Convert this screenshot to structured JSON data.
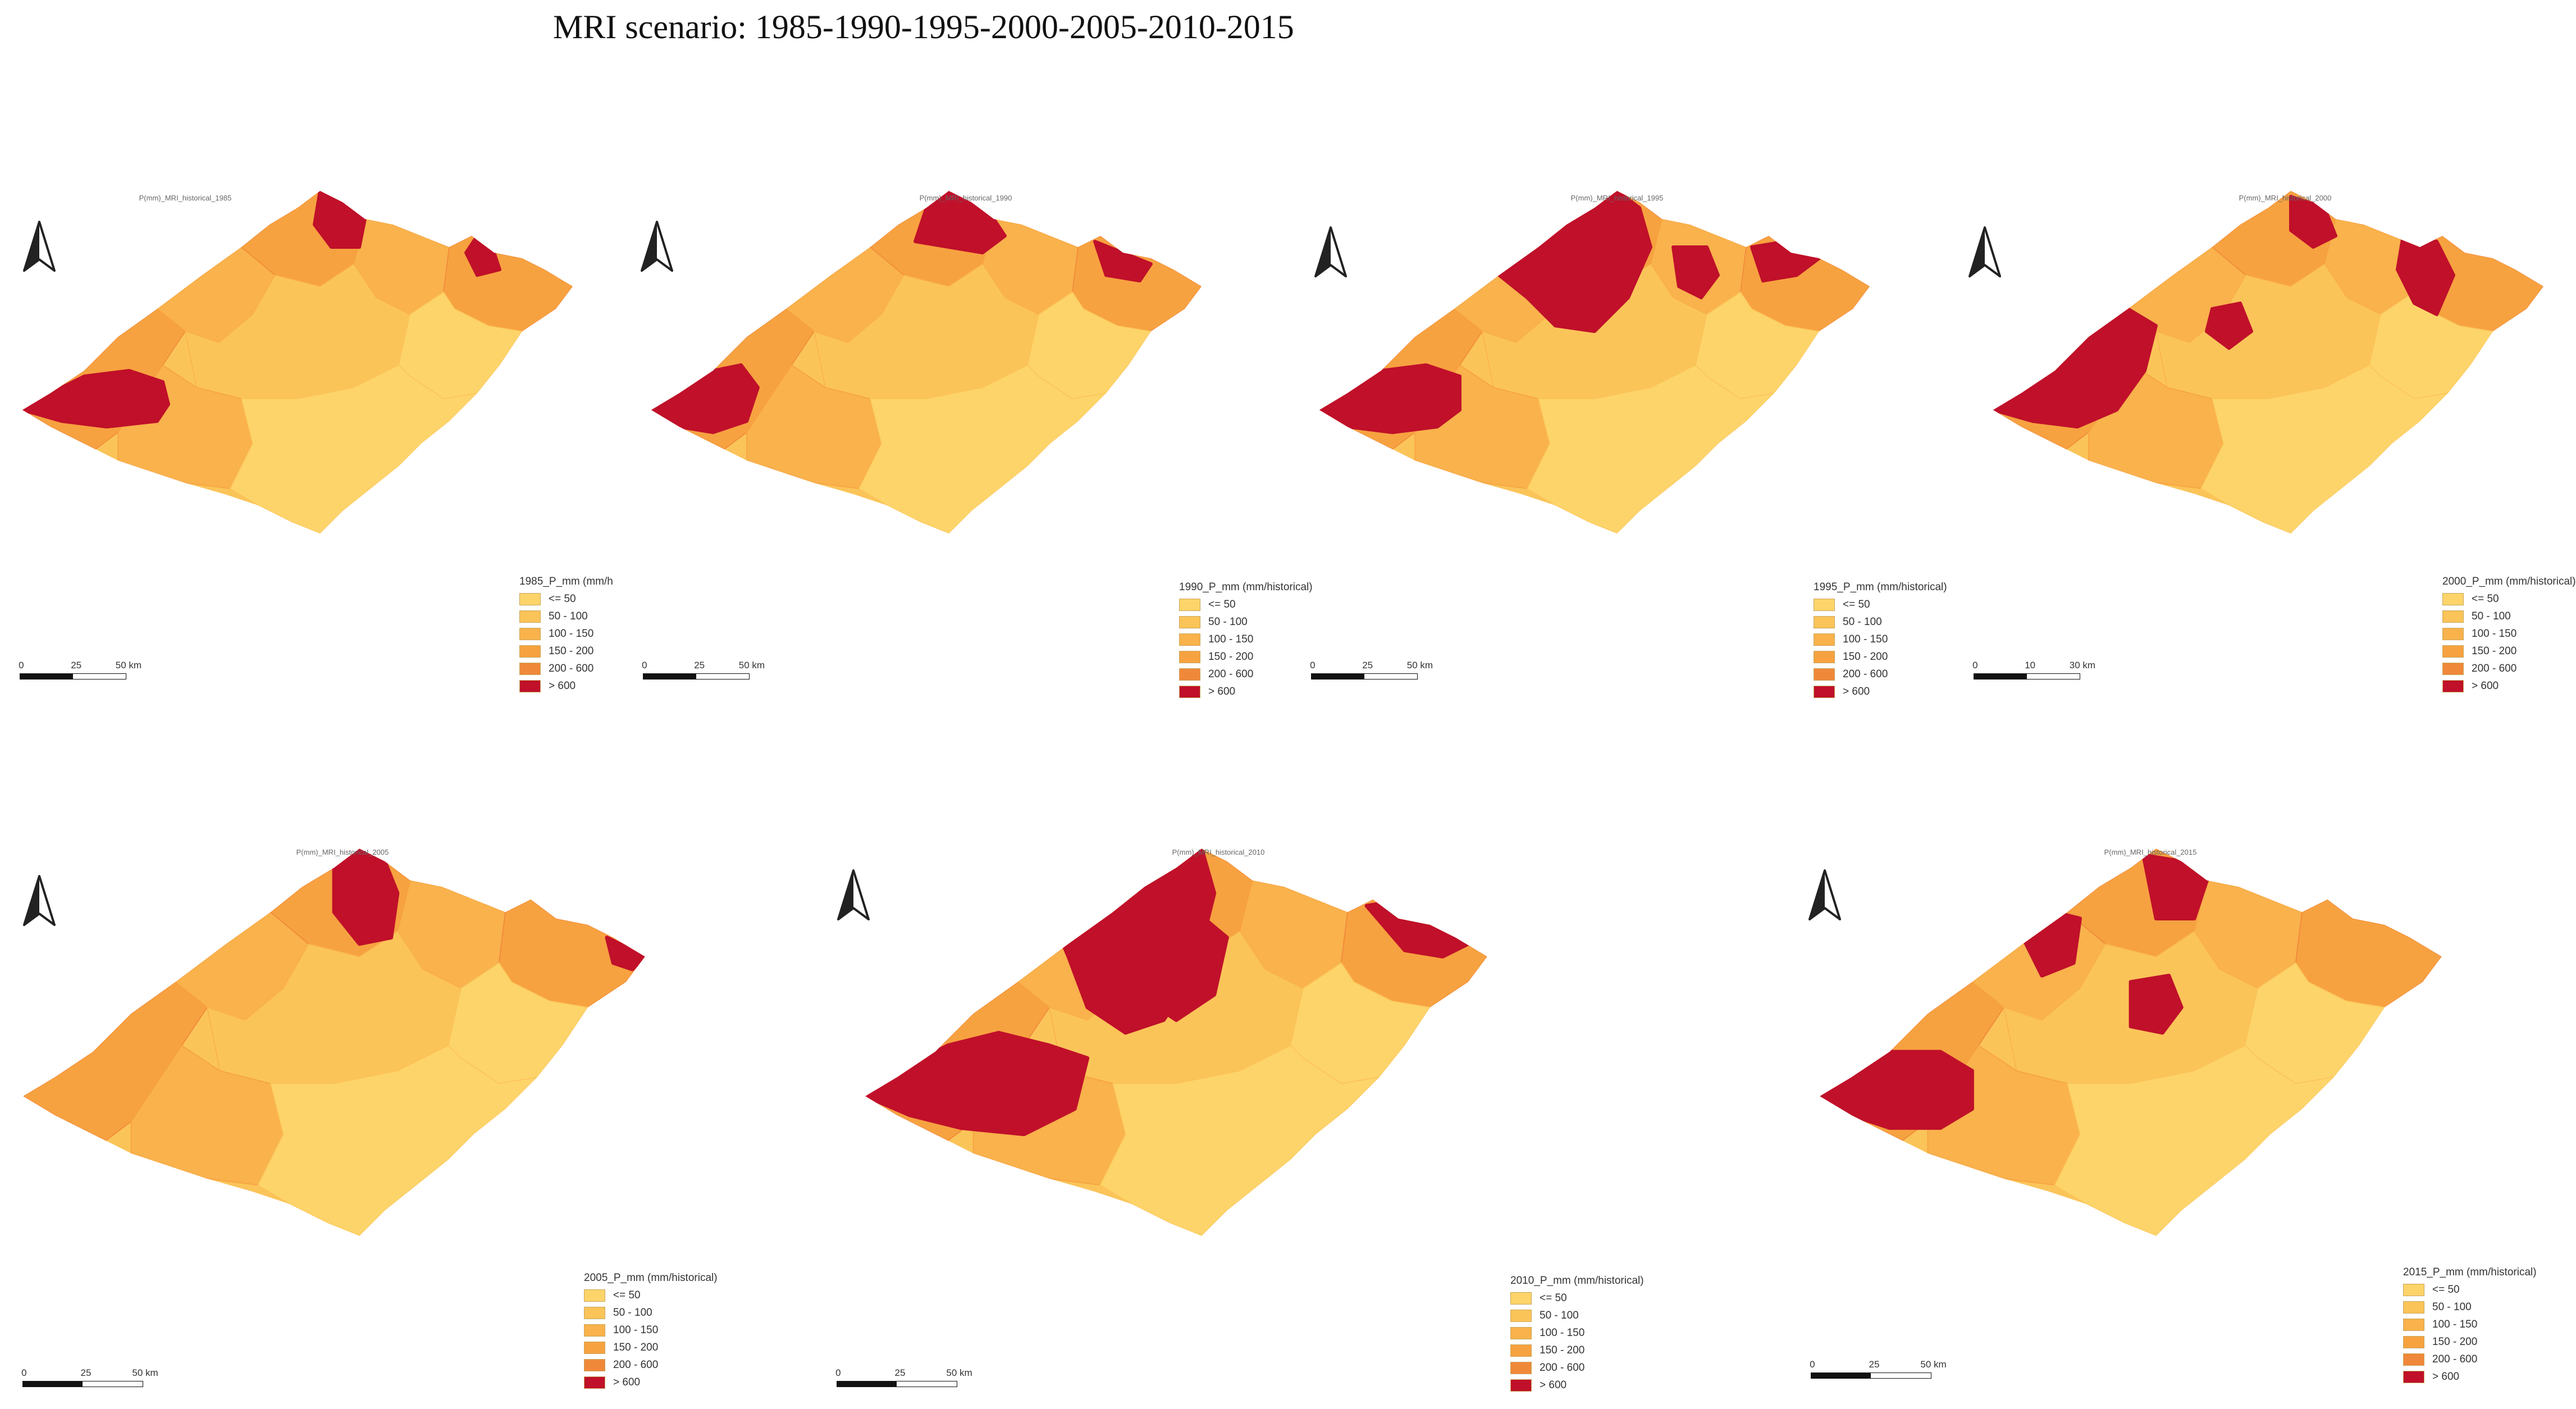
{
  "figure_title": "MRI scenario: 1985-1990-1995-2000-2005-2010-2015",
  "colors": {
    "class_le_50": "#fdd46a",
    "class_50_100": "#fbc459",
    "class_100_150": "#f9b24c",
    "class_150_200": "#f7a240",
    "class_200_600": "#f0883a",
    "class_gt_600": "#c0102a"
  },
  "panels": [
    {
      "title": "P(mm)_MRI_historical_1985",
      "legend": {
        "header": "1985_P_mm (mm/h",
        "classes": [
          {
            "label": "<= 50",
            "color": "#fdd46a"
          },
          {
            "label": "50 - 100",
            "color": "#fbc459"
          },
          {
            "label": "100 - 150",
            "color": "#f9b24c"
          },
          {
            "label": "150 - 200",
            "color": "#f7a240"
          },
          {
            "label": "200 - 600",
            "color": "#f0883a"
          },
          {
            "label": "> 600",
            "color": "#c0102a"
          }
        ]
      },
      "scale_bar": {
        "ticks": [
          "0",
          "25",
          "50 km"
        ]
      }
    },
    {
      "title": "P(mm)_MRI_historical_1990",
      "legend": {
        "header": "1990_P_mm (mm/historical)",
        "classes": [
          {
            "label": "<= 50",
            "color": "#fdd46a"
          },
          {
            "label": "50 - 100",
            "color": "#fbc459"
          },
          {
            "label": "100 - 150",
            "color": "#f9b24c"
          },
          {
            "label": "150 - 200",
            "color": "#f7a240"
          },
          {
            "label": "200 - 600",
            "color": "#f0883a"
          },
          {
            "label": "> 600",
            "color": "#c0102a"
          }
        ]
      },
      "scale_bar": {
        "ticks": [
          "0",
          "25",
          "50 km"
        ]
      }
    },
    {
      "title": "P(mm)_MRI_historical_1995",
      "legend": {
        "header": "1995_P_mm (mm/historical)",
        "classes": [
          {
            "label": "<= 50",
            "color": "#fdd46a"
          },
          {
            "label": "50 - 100",
            "color": "#fbc459"
          },
          {
            "label": "100 - 150",
            "color": "#f9b24c"
          },
          {
            "label": "150 - 200",
            "color": "#f7a240"
          },
          {
            "label": "200 - 600",
            "color": "#f0883a"
          },
          {
            "label": "> 600",
            "color": "#c0102a"
          }
        ]
      },
      "scale_bar": {
        "ticks": [
          "0",
          "25",
          "50 km"
        ]
      }
    },
    {
      "title": "P(mm)_MRI_historical_2000",
      "legend": {
        "header": "2000_P_mm (mm/historical)",
        "classes": [
          {
            "label": "<= 50",
            "color": "#fdd46a"
          },
          {
            "label": "50 - 100",
            "color": "#fbc459"
          },
          {
            "label": "100 - 150",
            "color": "#f9b24c"
          },
          {
            "label": "150 - 200",
            "color": "#f7a240"
          },
          {
            "label": "200 - 600",
            "color": "#f0883a"
          },
          {
            "label": "> 600",
            "color": "#c0102a"
          }
        ]
      },
      "scale_bar": {
        "ticks": [
          "0",
          "10",
          "30 km"
        ]
      }
    },
    {
      "title": "P(mm)_MRI_historical_2005",
      "legend": {
        "header": "2005_P_mm (mm/historical)",
        "classes": [
          {
            "label": "<= 50",
            "color": "#fdd46a"
          },
          {
            "label": "50 - 100",
            "color": "#fbc459"
          },
          {
            "label": "100 - 150",
            "color": "#f9b24c"
          },
          {
            "label": "150 - 200",
            "color": "#f7a240"
          },
          {
            "label": "200 - 600",
            "color": "#f0883a"
          },
          {
            "label": "> 600",
            "color": "#c0102a"
          }
        ]
      },
      "scale_bar": {
        "ticks": [
          "0",
          "25",
          "50 km"
        ]
      }
    },
    {
      "title": "P(mm)_MRI_historical_2010",
      "legend": {
        "header": "2010_P_mm (mm/historical)",
        "classes": [
          {
            "label": "<= 50",
            "color": "#fdd46a"
          },
          {
            "label": "50 - 100",
            "color": "#fbc459"
          },
          {
            "label": "100 - 150",
            "color": "#f9b24c"
          },
          {
            "label": "150 - 200",
            "color": "#f7a240"
          },
          {
            "label": "200 - 600",
            "color": "#f0883a"
          },
          {
            "label": "> 600",
            "color": "#c0102a"
          }
        ]
      },
      "scale_bar": {
        "ticks": [
          "0",
          "25",
          "50 km"
        ]
      }
    },
    {
      "title": "P(mm)_MRI_historical_2015",
      "legend": {
        "header": "2015_P_mm (mm/historical)",
        "classes": [
          {
            "label": "<= 50",
            "color": "#fdd46a"
          },
          {
            "label": "50 - 100",
            "color": "#fbc459"
          },
          {
            "label": "100 - 150",
            "color": "#f9b24c"
          },
          {
            "label": "150 - 200",
            "color": "#f7a240"
          },
          {
            "label": "200 - 600",
            "color": "#f0883a"
          },
          {
            "label": "> 600",
            "color": "#c0102a"
          }
        ]
      },
      "scale_bar": {
        "ticks": [
          "0",
          "25",
          "50 km"
        ]
      }
    }
  ]
}
